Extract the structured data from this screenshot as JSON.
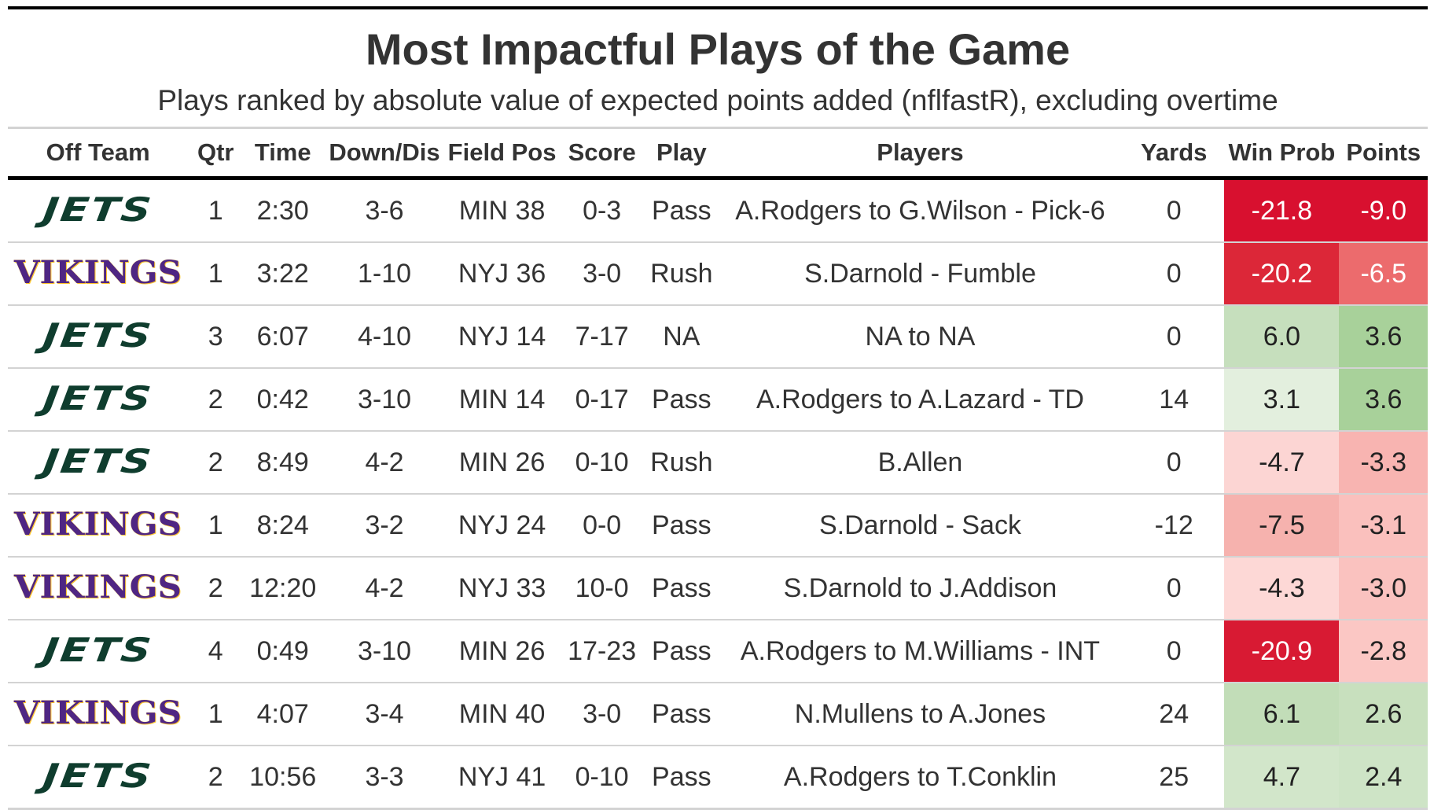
{
  "title": "Most Impactful Plays of the Game",
  "subtitle": "Plays ranked by absolute value of expected points added (nflfastR), excluding overtime",
  "columns": [
    "Off Team",
    "Qtr",
    "Time",
    "Down/Dis",
    "Field Pos",
    "Score",
    "Play",
    "Players",
    "Yards",
    "Win Prob",
    "Points"
  ],
  "teams": {
    "jets": {
      "logo_text": "JETS",
      "color": "#0f3d2e"
    },
    "vikings": {
      "logo_text": "VIKINGS",
      "color": "#4f2683",
      "accent": "#ffc62f"
    }
  },
  "rows": [
    {
      "team": "jets",
      "qtr": "1",
      "time": "2:30",
      "down": "3-6",
      "field": "MIN 38",
      "score": "0-3",
      "play": "Pass",
      "players": "A.Rodgers to G.Wilson - Pick-6",
      "yards": "0",
      "win_prob": "-21.8",
      "points": "-9.0",
      "win_prob_color": "#d8102f",
      "points_color": "#d8102f",
      "win_prob_light": true,
      "points_light": true
    },
    {
      "team": "vikings",
      "qtr": "1",
      "time": "3:22",
      "down": "1-10",
      "field": "NYJ 36",
      "score": "3-0",
      "play": "Rush",
      "players": "S.Darnold - Fumble",
      "yards": "0",
      "win_prob": "-20.2",
      "points": "-6.5",
      "win_prob_color": "#dc2738",
      "points_color": "#ec6b6d",
      "win_prob_light": true,
      "points_light": true
    },
    {
      "team": "jets",
      "qtr": "3",
      "time": "6:07",
      "down": "4-10",
      "field": "NYJ 14",
      "score": "7-17",
      "play": "NA",
      "players": "NA to NA",
      "yards": "0",
      "win_prob": "6.0",
      "points": "3.6",
      "win_prob_color": "#c6dfbd",
      "points_color": "#a8d19a",
      "win_prob_light": false,
      "points_light": false
    },
    {
      "team": "jets",
      "qtr": "2",
      "time": "0:42",
      "down": "3-10",
      "field": "MIN 14",
      "score": "0-17",
      "play": "Pass",
      "players": "A.Rodgers to A.Lazard - TD",
      "yards": "14",
      "win_prob": "3.1",
      "points": "3.6",
      "win_prob_color": "#e3efde",
      "points_color": "#a8d19a",
      "win_prob_light": false,
      "points_light": false
    },
    {
      "team": "jets",
      "qtr": "2",
      "time": "8:49",
      "down": "4-2",
      "field": "MIN 26",
      "score": "0-10",
      "play": "Rush",
      "players": "B.Allen",
      "yards": "0",
      "win_prob": "-4.7",
      "points": "-3.3",
      "win_prob_color": "#fcd5d3",
      "points_color": "#f8b4b1",
      "win_prob_light": false,
      "points_light": false
    },
    {
      "team": "vikings",
      "qtr": "1",
      "time": "8:24",
      "down": "3-2",
      "field": "NYJ 24",
      "score": "0-0",
      "play": "Pass",
      "players": "S.Darnold - Sack",
      "yards": "-12",
      "win_prob": "-7.5",
      "points": "-3.1",
      "win_prob_color": "#f6b2ae",
      "points_color": "#fac0bd",
      "win_prob_light": false,
      "points_light": false
    },
    {
      "team": "vikings",
      "qtr": "2",
      "time": "12:20",
      "down": "4-2",
      "field": "NYJ 33",
      "score": "10-0",
      "play": "Pass",
      "players": "S.Darnold to J.Addison",
      "yards": "0",
      "win_prob": "-4.3",
      "points": "-3.0",
      "win_prob_color": "#fdd8d6",
      "points_color": "#fac2bf",
      "win_prob_light": false,
      "points_light": false
    },
    {
      "team": "jets",
      "qtr": "4",
      "time": "0:49",
      "down": "3-10",
      "field": "MIN 26",
      "score": "17-23",
      "play": "Pass",
      "players": "A.Rodgers to M.Williams - INT",
      "yards": "0",
      "win_prob": "-20.9",
      "points": "-2.8",
      "win_prob_color": "#d81a33",
      "points_color": "#fbc7c4",
      "win_prob_light": true,
      "points_light": false
    },
    {
      "team": "vikings",
      "qtr": "1",
      "time": "4:07",
      "down": "3-4",
      "field": "MIN 40",
      "score": "3-0",
      "play": "Pass",
      "players": "N.Mullens to A.Jones",
      "yards": "24",
      "win_prob": "6.1",
      "points": "2.6",
      "win_prob_color": "#c2ddb8",
      "points_color": "#c8e0be",
      "win_prob_light": false,
      "points_light": false
    },
    {
      "team": "jets",
      "qtr": "2",
      "time": "10:56",
      "down": "3-3",
      "field": "NYJ 41",
      "score": "0-10",
      "play": "Pass",
      "players": "A.Rodgers to T.Conklin",
      "yards": "25",
      "win_prob": "4.7",
      "points": "2.4",
      "win_prob_color": "#d2e6ca",
      "points_color": "#cee4c6",
      "win_prob_light": false,
      "points_light": false
    }
  ]
}
